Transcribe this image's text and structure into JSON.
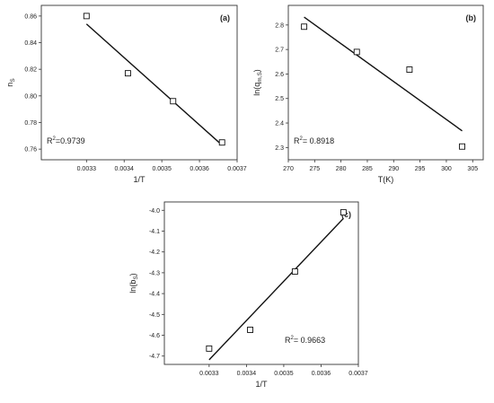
{
  "chart_data": [
    {
      "type": "scatter",
      "panel_label": "(a)",
      "xlabel": "1/T",
      "ylabel": "n",
      "ylabel_sub": "S",
      "xlim": [
        0.00318,
        0.0037
      ],
      "ylim": [
        0.752,
        0.868
      ],
      "xticks": [
        0.0033,
        0.0034,
        0.0035,
        0.0036,
        0.0037
      ],
      "xtick_labels": [
        "0.0033",
        "0.0034",
        "0.0035",
        "0.0036",
        "0.0037"
      ],
      "yticks": [
        0.76,
        0.78,
        0.8,
        0.82,
        0.84,
        0.86
      ],
      "ytick_labels": [
        "0.76",
        "0.78",
        "0.80",
        "0.82",
        "0.84",
        "0.86"
      ],
      "points": [
        {
          "x": 0.0033,
          "y": 0.86
        },
        {
          "x": 0.00341,
          "y": 0.817
        },
        {
          "x": 0.00353,
          "y": 0.796
        },
        {
          "x": 0.00366,
          "y": 0.765
        }
      ],
      "fit_line": [
        {
          "x": 0.0033,
          "y": 0.854
        },
        {
          "x": 0.00366,
          "y": 0.763
        }
      ],
      "r2_prefix": "R",
      "r2_sup": "2",
      "r2_suffix": "=0.9739",
      "r2_pos": "bottom-left"
    },
    {
      "type": "scatter",
      "panel_label": "(b)",
      "xlabel": "T(K)",
      "ylabel": "ln(q",
      "ylabel_sub": "m,S",
      "ylabel_end": ")",
      "xlim": [
        270,
        307
      ],
      "ylim": [
        2.25,
        2.88
      ],
      "xticks": [
        270,
        275,
        280,
        285,
        290,
        295,
        300,
        305
      ],
      "xtick_labels": [
        "270",
        "275",
        "280",
        "285",
        "290",
        "295",
        "300",
        "305"
      ],
      "yticks": [
        2.3,
        2.4,
        2.5,
        2.6,
        2.7,
        2.8
      ],
      "ytick_labels": [
        "2.3",
        "2.4",
        "2.5",
        "2.6",
        "2.7",
        "2.8"
      ],
      "points": [
        {
          "x": 273,
          "y": 2.793
        },
        {
          "x": 283,
          "y": 2.69
        },
        {
          "x": 293,
          "y": 2.618
        },
        {
          "x": 303,
          "y": 2.304
        }
      ],
      "fit_line": [
        {
          "x": 273,
          "y": 2.832
        },
        {
          "x": 303,
          "y": 2.368
        }
      ],
      "r2_prefix": "R",
      "r2_sup": "2",
      "r2_suffix": "= 0.8918",
      "r2_pos": "bottom-left"
    },
    {
      "type": "scatter",
      "panel_label": "(c)",
      "xlabel": "1/T",
      "ylabel": "ln(b",
      "ylabel_sub": "S",
      "ylabel_end": ")",
      "xlim": [
        0.00318,
        0.0037
      ],
      "ylim": [
        -4.74,
        -3.96
      ],
      "xticks": [
        0.0033,
        0.0034,
        0.0035,
        0.0036,
        0.0037
      ],
      "xtick_labels": [
        "0.0033",
        "0.0034",
        "0.0035",
        "0.0036",
        "0.0037"
      ],
      "yticks": [
        -4.7,
        -4.6,
        -4.5,
        -4.4,
        -4.3,
        -4.2,
        -4.1,
        -4.0
      ],
      "ytick_labels": [
        "-4.7",
        "-4.6",
        "-4.5",
        "-4.4",
        "-4.3",
        "-4.2",
        "-4.1",
        "-4.0"
      ],
      "points": [
        {
          "x": 0.0033,
          "y": -4.664
        },
        {
          "x": 0.00341,
          "y": -4.574
        },
        {
          "x": 0.00353,
          "y": -4.294
        },
        {
          "x": 0.00366,
          "y": -4.01
        }
      ],
      "fit_line": [
        {
          "x": 0.0033,
          "y": -4.718
        },
        {
          "x": 0.00366,
          "y": -4.039
        }
      ],
      "r2_prefix": "R",
      "r2_sup": "2",
      "r2_suffix": "= 0.9663",
      "r2_pos": "bottom-right"
    }
  ]
}
